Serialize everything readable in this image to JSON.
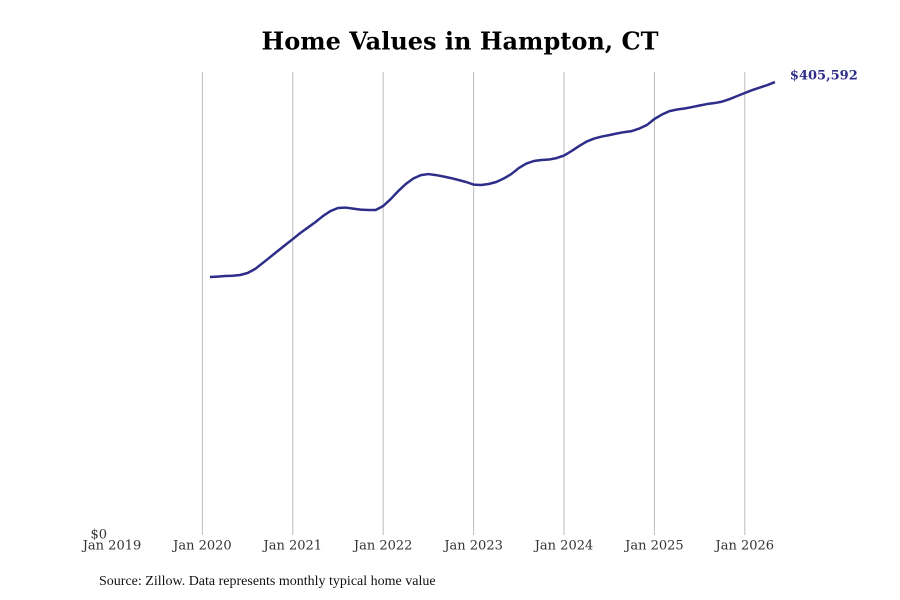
{
  "chart_data": {
    "type": "line",
    "title": "Home Values in Hampton, CT",
    "source": "Source: Zillow. Data represents monthly typical home value",
    "color": "#2e2e8a",
    "grid": true,
    "x": [
      "2020-02",
      "2020-03",
      "2020-04",
      "2020-05",
      "2020-06",
      "2020-07",
      "2020-08",
      "2020-09",
      "2020-10",
      "2020-11",
      "2020-12",
      "2021-01",
      "2021-02",
      "2021-03",
      "2021-04",
      "2021-05",
      "2021-06",
      "2021-07",
      "2021-08",
      "2021-09",
      "2021-10",
      "2021-11",
      "2021-12",
      "2022-01",
      "2022-02",
      "2022-03",
      "2022-04",
      "2022-05",
      "2022-06",
      "2022-07",
      "2022-08",
      "2022-09",
      "2022-10",
      "2022-11",
      "2022-12",
      "2023-01",
      "2023-02",
      "2023-03",
      "2023-04",
      "2023-05",
      "2023-06",
      "2023-07",
      "2023-08",
      "2023-09",
      "2023-10",
      "2023-11",
      "2023-12",
      "2024-01",
      "2024-02",
      "2024-03",
      "2024-04",
      "2024-05",
      "2024-06",
      "2024-07",
      "2024-08",
      "2024-09",
      "2024-10",
      "2024-11",
      "2024-12",
      "2025-01",
      "2025-02",
      "2025-03",
      "2025-04",
      "2025-05",
      "2025-06",
      "2025-07",
      "2025-08",
      "2025-09",
      "2025-10",
      "2025-11",
      "2025-12",
      "2026-01",
      "2026-02",
      "2026-03",
      "2026-04",
      "2026-05"
    ],
    "values": [
      231000,
      231400,
      231900,
      232100,
      232800,
      234600,
      238200,
      243500,
      248900,
      254300,
      259700,
      265000,
      270400,
      275300,
      280200,
      285600,
      290100,
      292800,
      293200,
      292300,
      291400,
      291000,
      291000,
      294600,
      300800,
      308000,
      314300,
      319200,
      322300,
      323200,
      322300,
      321000,
      319600,
      317900,
      316100,
      313800,
      313400,
      314300,
      316100,
      319200,
      323200,
      328600,
      332600,
      334900,
      335800,
      336200,
      337500,
      339800,
      343800,
      348300,
      352300,
      355000,
      356800,
      358100,
      359500,
      360800,
      361700,
      364000,
      367100,
      372500,
      376500,
      379600,
      381000,
      381900,
      383200,
      384600,
      385900,
      386800,
      388100,
      390400,
      393100,
      395800,
      398400,
      400700,
      402900,
      405592
    ],
    "value_labels": [
      null,
      null,
      null,
      null,
      null,
      null,
      null,
      null,
      null,
      null,
      null,
      null,
      null,
      null,
      null,
      null,
      null,
      null,
      null,
      null,
      null,
      null,
      null,
      null,
      null,
      null,
      null,
      null,
      null,
      null,
      null,
      null,
      null,
      null,
      null,
      null,
      null,
      null,
      null,
      null,
      null,
      null,
      null,
      null,
      null,
      null,
      null,
      null,
      null,
      null,
      null,
      null,
      null,
      null,
      null,
      null,
      null,
      null,
      null,
      null,
      null,
      null,
      null,
      null,
      null,
      null,
      null,
      null,
      null,
      null,
      null,
      null,
      null,
      null,
      null,
      "$405,592"
    ],
    "xlim": [
      "2019-01",
      "2026-07"
    ],
    "xticks": [
      {
        "value": "2019-01",
        "label": "Jan 2019"
      },
      {
        "value": "2020-01",
        "label": "Jan 2020"
      },
      {
        "value": "2021-01",
        "label": "Jan 2021"
      },
      {
        "value": "2022-01",
        "label": "Jan 2022"
      },
      {
        "value": "2023-01",
        "label": "Jan 2023"
      },
      {
        "value": "2024-01",
        "label": "Jan 2024"
      },
      {
        "value": "2025-01",
        "label": "Jan 2025"
      },
      {
        "value": "2026-01",
        "label": "Jan 2026"
      }
    ],
    "ylim": [
      0,
      414600
    ],
    "yticks": [
      {
        "value": 0,
        "label": "$0"
      }
    ]
  }
}
